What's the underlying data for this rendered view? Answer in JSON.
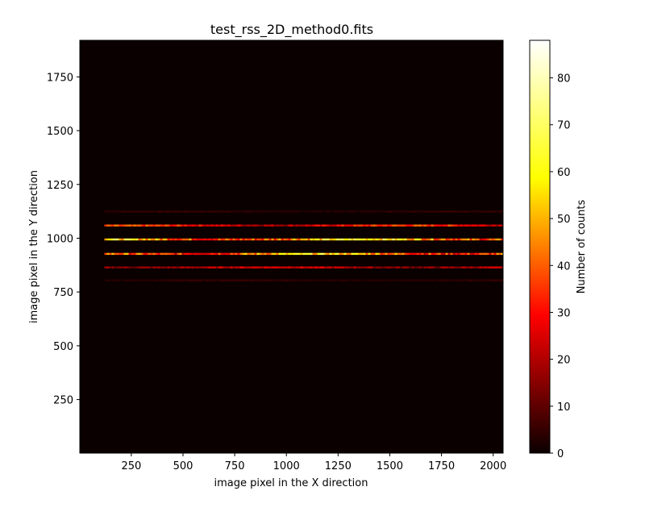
{
  "chart_data": {
    "type": "heatmap",
    "title": "test_rss_2D_method0.fits",
    "xlabel": "image pixel in the X direction",
    "ylabel": "image pixel in the Y direction",
    "xlim": [
      1,
      2048
    ],
    "ylim": [
      1,
      1920
    ],
    "x_ticks": [
      250,
      500,
      750,
      1000,
      1250,
      1500,
      1750,
      2000
    ],
    "y_ticks": [
      250,
      500,
      750,
      1000,
      1250,
      1500,
      1750
    ],
    "colormap": "hot",
    "colorbar": {
      "label": "Number of counts",
      "range": [
        0,
        88
      ],
      "ticks": [
        0,
        10,
        20,
        30,
        40,
        50,
        60,
        70,
        80
      ],
      "stops": [
        "#0b0000",
        "#ff0000",
        "#ffff00",
        "#ffffff"
      ]
    },
    "background_value": 0,
    "x_extent_of_features": [
      120,
      2040
    ],
    "features": [
      {
        "y": 1125,
        "peak_counts": 5
      },
      {
        "y": 1060,
        "peak_counts": 35
      },
      {
        "y": 995,
        "peak_counts": 60
      },
      {
        "y": 928,
        "peak_counts": 55
      },
      {
        "y": 865,
        "peak_counts": 25
      },
      {
        "y": 805,
        "peak_counts": 5
      }
    ],
    "grid": false,
    "legend": "none"
  }
}
